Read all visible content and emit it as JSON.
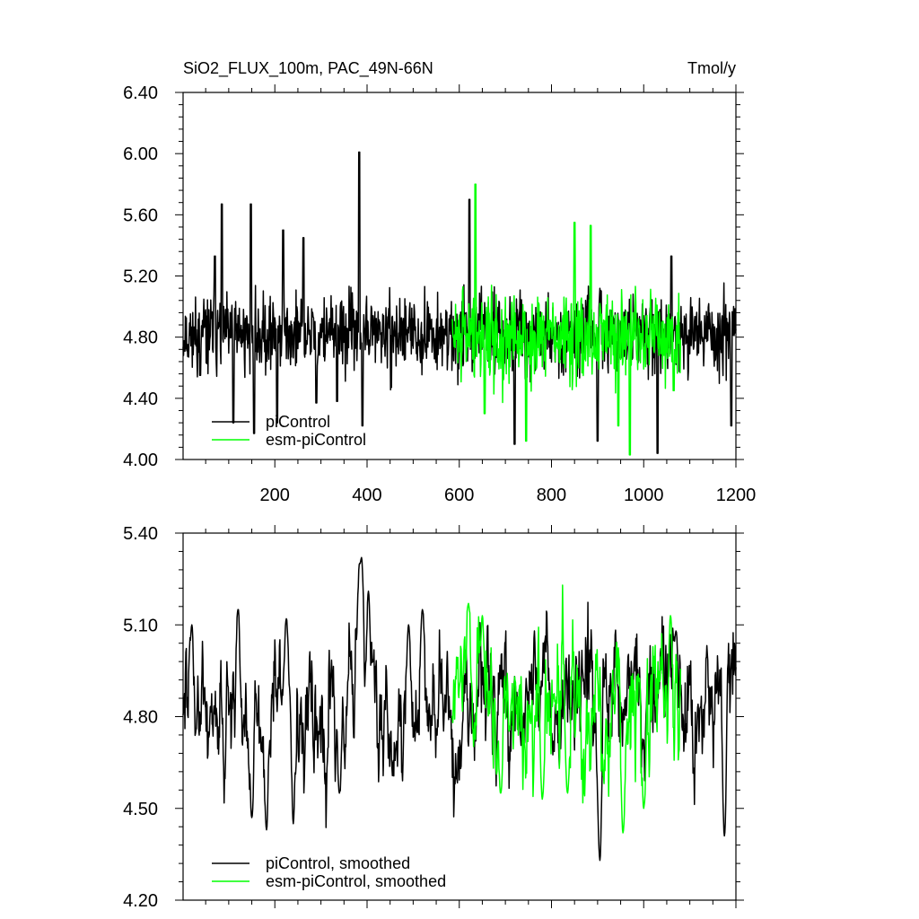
{
  "chart_data": [
    {
      "type": "line",
      "title_left": "SiO2_FLUX_100m, PAC_49N-66N",
      "title_right": "Tmol/y",
      "xlabel": "",
      "ylabel": "",
      "xlim": [
        1,
        1200
      ],
      "ylim": [
        4.0,
        6.4
      ],
      "x_ticks": [
        200,
        400,
        600,
        800,
        1000,
        1200
      ],
      "x_tick_labels": [
        "200",
        "400",
        "600",
        "800",
        "1000",
        "1200"
      ],
      "y_ticks": [
        4.0,
        4.4,
        4.8,
        5.2,
        5.6,
        6.0,
        6.4
      ],
      "y_tick_labels": [
        "4.00",
        "4.40",
        "4.80",
        "5.20",
        "5.60",
        "6.00",
        "6.40"
      ],
      "legend_position": "bottom-left",
      "series": [
        {
          "name": "piControl",
          "color": "#000000",
          "x_start": 1,
          "x_end": 1200,
          "mean": 4.82,
          "spread": 0.17,
          "seed": 11,
          "spikes": [
            {
              "x": 38,
              "y": 4.55
            },
            {
              "x": 70,
              "y": 5.33
            },
            {
              "x": 85,
              "y": 5.67
            },
            {
              "x": 110,
              "y": 4.24
            },
            {
              "x": 148,
              "y": 5.67
            },
            {
              "x": 155,
              "y": 4.17
            },
            {
              "x": 205,
              "y": 4.24
            },
            {
              "x": 218,
              "y": 5.5
            },
            {
              "x": 262,
              "y": 5.45
            },
            {
              "x": 290,
              "y": 4.37
            },
            {
              "x": 335,
              "y": 4.38
            },
            {
              "x": 383,
              "y": 6.01
            },
            {
              "x": 390,
              "y": 4.22
            },
            {
              "x": 622,
              "y": 5.7
            },
            {
              "x": 720,
              "y": 4.1
            },
            {
              "x": 900,
              "y": 4.12
            },
            {
              "x": 1030,
              "y": 4.04
            },
            {
              "x": 1060,
              "y": 5.33
            },
            {
              "x": 1190,
              "y": 4.22
            }
          ]
        },
        {
          "name": "esm-piControl",
          "color": "#00ff00",
          "x_start": 585,
          "x_end": 1080,
          "mean": 4.8,
          "spread": 0.2,
          "seed": 29,
          "spikes": [
            {
              "x": 635,
              "y": 5.8
            },
            {
              "x": 655,
              "y": 4.3
            },
            {
              "x": 745,
              "y": 4.12
            },
            {
              "x": 850,
              "y": 5.55
            },
            {
              "x": 885,
              "y": 5.53
            },
            {
              "x": 945,
              "y": 4.22
            },
            {
              "x": 970,
              "y": 4.03
            },
            {
              "x": 1065,
              "y": 4.45
            }
          ]
        }
      ]
    },
    {
      "type": "line",
      "title_left": "",
      "title_right": "",
      "xlabel": "",
      "ylabel": "",
      "xlim": [
        1,
        1200
      ],
      "ylim": [
        4.2,
        5.4
      ],
      "x_ticks": [
        200,
        400,
        600,
        800,
        1000,
        1200
      ],
      "x_tick_labels": [],
      "y_ticks": [
        4.2,
        4.5,
        4.8,
        5.1,
        5.4
      ],
      "y_tick_labels": [
        "4.20",
        "4.50",
        "4.80",
        "5.10",
        "5.40"
      ],
      "legend_position": "bottom-left",
      "series": [
        {
          "name": "piControl, smoothed",
          "color": "#000000",
          "x_start": 1,
          "x_end": 1200,
          "mean": 4.84,
          "spread": 0.13,
          "seed": 47,
          "smooth": true,
          "spikes": [
            {
              "x": 20,
              "y": 5.1
            },
            {
              "x": 120,
              "y": 5.15
            },
            {
              "x": 150,
              "y": 4.47
            },
            {
              "x": 182,
              "y": 4.43
            },
            {
              "x": 225,
              "y": 5.12
            },
            {
              "x": 240,
              "y": 4.45
            },
            {
              "x": 340,
              "y": 4.55
            },
            {
              "x": 383,
              "y": 5.28
            },
            {
              "x": 388,
              "y": 5.32
            },
            {
              "x": 403,
              "y": 5.21
            },
            {
              "x": 490,
              "y": 5.1
            },
            {
              "x": 520,
              "y": 5.15
            },
            {
              "x": 905,
              "y": 4.33
            },
            {
              "x": 1070,
              "y": 5.08
            },
            {
              "x": 1175,
              "y": 4.41
            }
          ]
        },
        {
          "name": "esm-piControl, smoothed",
          "color": "#00ff00",
          "x_start": 585,
          "x_end": 1080,
          "mean": 4.82,
          "spread": 0.14,
          "seed": 61,
          "smooth": true,
          "spikes": [
            {
              "x": 620,
              "y": 5.17
            },
            {
              "x": 650,
              "y": 5.13
            },
            {
              "x": 690,
              "y": 4.55
            },
            {
              "x": 780,
              "y": 4.53
            },
            {
              "x": 835,
              "y": 4.55
            },
            {
              "x": 955,
              "y": 4.42
            },
            {
              "x": 1000,
              "y": 4.5
            },
            {
              "x": 1058,
              "y": 5.13
            }
          ]
        }
      ]
    }
  ]
}
